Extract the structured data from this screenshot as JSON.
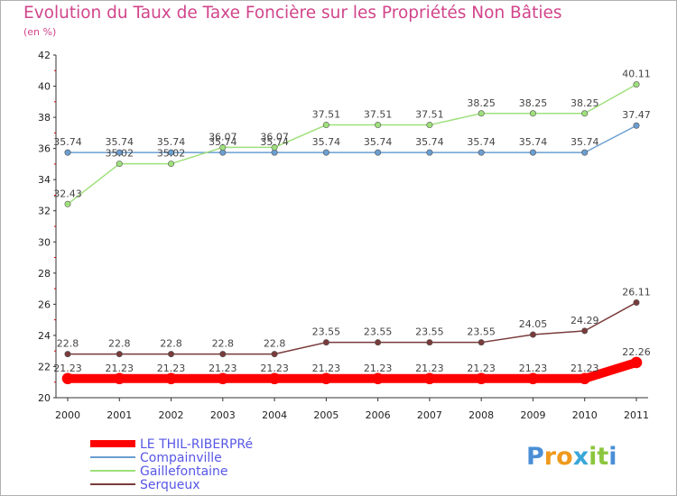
{
  "title": "Evolution du Taux de Taxe Foncière sur les Propriétés Non Bâties",
  "unit": "(en %)",
  "logo_text": "Proxiti",
  "chart_data": {
    "type": "line",
    "x": [
      "2000",
      "2001",
      "2002",
      "2003",
      "2004",
      "2005",
      "2006",
      "2007",
      "2008",
      "2009",
      "2010",
      "2011"
    ],
    "ylim": [
      20,
      42
    ],
    "yticks": [
      20,
      22,
      24,
      26,
      28,
      30,
      32,
      34,
      36,
      38,
      40,
      42
    ],
    "grid": false,
    "legend_position": "bottom-left",
    "series": [
      {
        "name": "LE THIL-RIBERPRé",
        "color": "#ff0000",
        "values": [
          21.23,
          21.23,
          21.23,
          21.23,
          21.23,
          21.23,
          21.23,
          21.23,
          21.23,
          21.23,
          21.23,
          22.26
        ],
        "labels": [
          "21.23",
          "21.23",
          "21.23",
          "21.23",
          "21.23",
          "21.23",
          "21.23",
          "21.23",
          "21.23",
          "21.23",
          "21.23",
          "22.26"
        ]
      },
      {
        "name": "Compainville",
        "color": "#6b9fd2",
        "values": [
          35.74,
          35.74,
          35.74,
          35.74,
          35.74,
          35.74,
          35.74,
          35.74,
          35.74,
          35.74,
          35.74,
          37.47
        ],
        "labels": [
          "35.74",
          "35.74",
          "35.74",
          "35.74",
          "35.74",
          "35.74",
          "35.74",
          "35.74",
          "35.74",
          "35.74",
          "35.74",
          "37.47"
        ]
      },
      {
        "name": "Gaillefontaine",
        "color": "#9fe07c",
        "values": [
          32.43,
          35.02,
          35.02,
          36.07,
          36.07,
          37.51,
          37.51,
          37.51,
          38.25,
          38.25,
          38.25,
          40.11
        ],
        "labels": [
          "32.43",
          "35.02",
          "35.02",
          "36.07",
          "36.07",
          "37.51",
          "37.51",
          "37.51",
          "38.25",
          "38.25",
          "38.25",
          "40.11"
        ]
      },
      {
        "name": "Serqueux",
        "color": "#7a3b3b",
        "values": [
          22.8,
          22.8,
          22.8,
          22.8,
          22.8,
          23.55,
          23.55,
          23.55,
          23.55,
          24.05,
          24.29,
          26.11
        ],
        "labels": [
          "22.8",
          "22.8",
          "22.8",
          "22.8",
          "22.8",
          "23.55",
          "23.55",
          "23.55",
          "23.55",
          "24.05",
          "24.29",
          "26.11"
        ]
      }
    ]
  }
}
